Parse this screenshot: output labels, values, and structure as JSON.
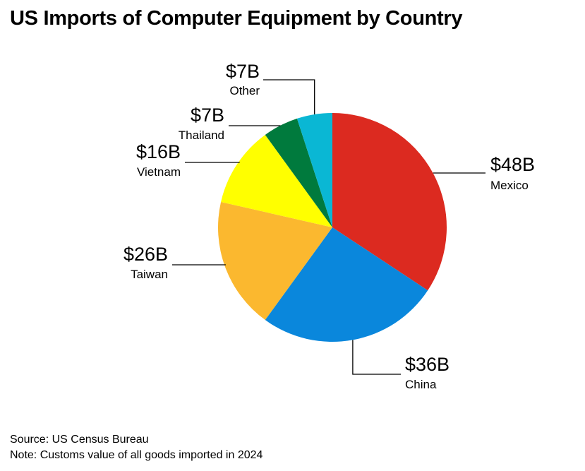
{
  "title": "US Imports of Computer Equipment by Country",
  "chart_data": {
    "type": "pie",
    "title": "US Imports of Computer Equipment by Country",
    "unit": "billion USD",
    "slices": [
      {
        "label": "Mexico",
        "value": 48,
        "value_label": "$48B",
        "color": "#dc2a20"
      },
      {
        "label": "China",
        "value": 36,
        "value_label": "$36B",
        "color": "#0a87dc"
      },
      {
        "label": "Taiwan",
        "value": 26,
        "value_label": "$26B",
        "color": "#fbb82f"
      },
      {
        "label": "Vietnam",
        "value": 16,
        "value_label": "$16B",
        "color": "#ffff00"
      },
      {
        "label": "Thailand",
        "value": 7,
        "value_label": "$7B",
        "color": "#007a3d"
      },
      {
        "label": "Other",
        "value": 7,
        "value_label": "$7B",
        "color": "#0ab7d4"
      }
    ]
  },
  "footer": {
    "source": "Source: US Census Bureau",
    "note": "Note: Customs value of all goods imported in 2024"
  }
}
